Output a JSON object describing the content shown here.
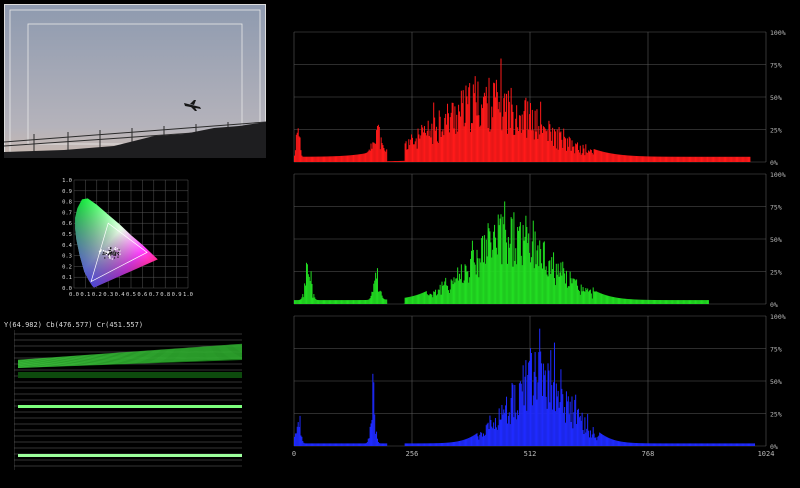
{
  "preview": {
    "icon": "airplane-silhouette",
    "sky_top": "#8e9aaf",
    "sky_bottom": "#b9b8bf"
  },
  "cie": {
    "ticks": [
      "0.0",
      "0.1",
      "0.2",
      "0.3",
      "0.4",
      "0.5",
      "0.6",
      "0.7",
      "0.8",
      "0.9",
      "1.0"
    ]
  },
  "ycc": {
    "readout": "Y(64.982) Cb(476.577) Cr(451.557)"
  },
  "histogram": {
    "x_ticks": [
      "0",
      "256",
      "512",
      "768",
      "1024"
    ],
    "y_ticks": [
      "0%",
      "25%",
      "50%",
      "75%",
      "100%"
    ],
    "x_range": [
      0,
      1024
    ],
    "y_range": [
      0,
      100
    ],
    "channels": [
      {
        "name": "red",
        "color": "#ff1a1a",
        "peaks": [
          {
            "c": 8,
            "w": 4,
            "h": 48
          },
          {
            "c": 178,
            "w": 10,
            "h": 30
          },
          {
            "c": 420,
            "w": 150,
            "h": 62
          }
        ],
        "tail_end": 990,
        "floor": 4
      },
      {
        "name": "green",
        "color": "#22dd22",
        "peaks": [
          {
            "c": 30,
            "w": 8,
            "h": 44
          },
          {
            "c": 178,
            "w": 8,
            "h": 30
          },
          {
            "c": 470,
            "w": 120,
            "h": 72
          }
        ],
        "tail_end": 900,
        "floor": 3
      },
      {
        "name": "blue",
        "color": "#1f2bff",
        "peaks": [
          {
            "c": 8,
            "w": 6,
            "h": 30
          },
          {
            "c": 170,
            "w": 6,
            "h": 58
          },
          {
            "c": 530,
            "w": 90,
            "h": 72
          }
        ],
        "tail_end": 1000,
        "floor": 2
      }
    ]
  }
}
